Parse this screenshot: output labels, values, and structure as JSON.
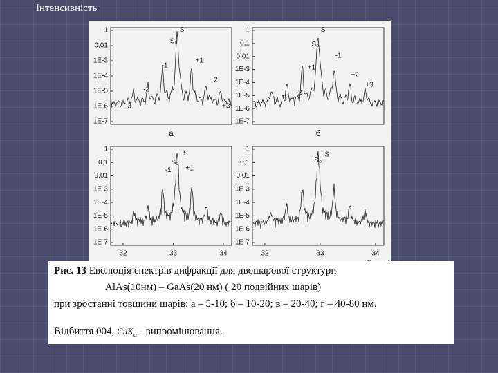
{
  "header": {
    "title": "Інтенсивність"
  },
  "figure": {
    "panels": [
      {
        "label": "а",
        "yticks": [
          "1",
          "0,01",
          "1E-3",
          "1E-4",
          "1E-5",
          "1E-6",
          "1E-7"
        ],
        "peaks": [
          "S",
          "S₀",
          "+1",
          "-1",
          "-2",
          "+2",
          "-3",
          "+3"
        ]
      },
      {
        "label": "б",
        "yticks": [
          "1",
          "0,1",
          "0,01",
          "1E-3",
          "1E-4",
          "1E-5",
          "1E-6",
          "1E-7"
        ],
        "peaks": [
          "S",
          "S₀",
          "-1",
          "+1",
          "+2",
          "-2",
          "-3",
          "+3"
        ]
      },
      {
        "yticks": [
          "1",
          "0,1",
          "0,01",
          "1E-3",
          "1E-4",
          "1E-5",
          "1E-6",
          "1E-7"
        ],
        "peaks": [
          "S₀",
          "S",
          "-1",
          "+1"
        ],
        "xticks": [
          "32",
          "33",
          "34"
        ]
      },
      {
        "yticks": [
          "1",
          "0,1",
          "0,01",
          "1E-3",
          "1E-4",
          "1E-5",
          "1E-6",
          "1E-7"
        ],
        "peaks": [
          "S₀",
          "S"
        ],
        "xticks": [
          "32",
          "33",
          "34"
        ],
        "xlabel": "θ, град"
      }
    ]
  },
  "caption": {
    "lines": [
      {
        "bold": "Рис. 13",
        "text": " Еволюція спектрів дифракції для двошарової структури"
      },
      {
        "text": "AlAs(10нм) – GaAs(20 нм) ( 20 подвійних шарів)"
      },
      {
        "text": "при зростанні товщини шарів: а – 5-10; б – 10-20; в – 20-40; г – 40-80 нм."
      }
    ],
    "reflection": {
      "before": "Відбиття 004, ",
      "formula": "CuK",
      "sub": "α",
      "after": " - випромінювання."
    }
  }
}
